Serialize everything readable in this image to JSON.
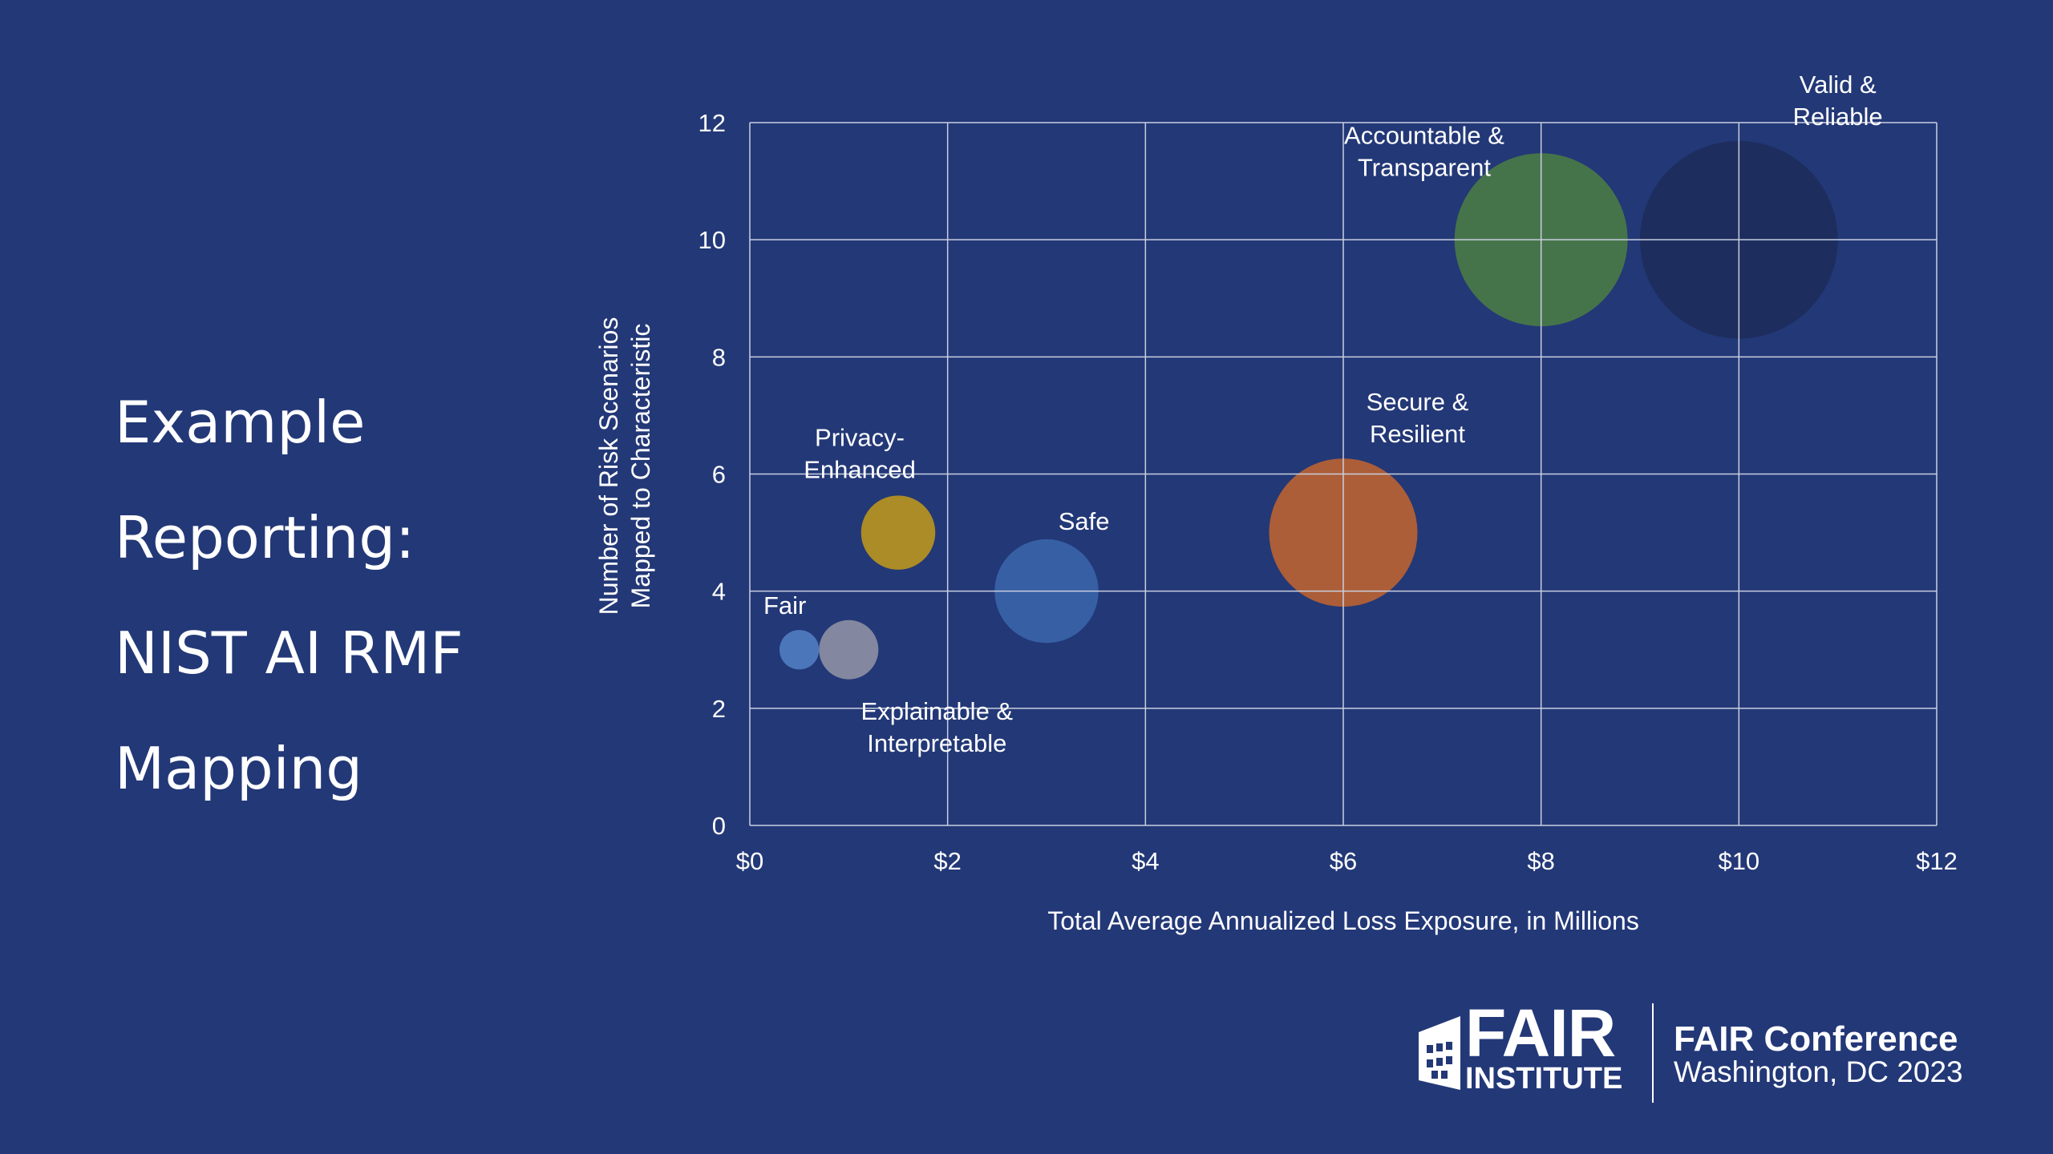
{
  "slide": {
    "title_lines": [
      "Example",
      "Reporting:",
      "NIST AI RMF",
      "Mapping"
    ],
    "background_color": "#233877"
  },
  "chart_data": {
    "type": "bubble",
    "title": "",
    "xlabel": "Total Average Annualized Loss Exposure, in Millions",
    "ylabel_lines": [
      "Number of Risk Scenarios",
      "Mapped to Characteristic"
    ],
    "xlim": [
      0,
      12
    ],
    "ylim": [
      0,
      12
    ],
    "x_ticks": [
      0,
      2,
      4,
      6,
      8,
      10,
      12
    ],
    "x_tick_labels": [
      "$0",
      "$2",
      "$4",
      "$6",
      "$8",
      "$10",
      "$12"
    ],
    "y_ticks": [
      0,
      2,
      4,
      6,
      8,
      10,
      12
    ],
    "y_tick_labels": [
      "0",
      "2",
      "4",
      "6",
      "8",
      "10",
      "12"
    ],
    "grid": true,
    "legend": "none",
    "points": [
      {
        "label_lines": [
          "Fair"
        ],
        "x": 0.5,
        "y": 3,
        "size": 0.4,
        "color": "#4f7cc0",
        "label_side": "above"
      },
      {
        "label_lines": [
          "Explainable &",
          "Interpretable"
        ],
        "x": 1.0,
        "y": 3,
        "size": 0.6,
        "color": "#8c8ea3",
        "label_side": "below"
      },
      {
        "label_lines": [
          "Privacy-",
          "Enhanced"
        ],
        "x": 1.5,
        "y": 5,
        "size": 0.75,
        "color": "#b8941f",
        "label_side": "above"
      },
      {
        "label_lines": [
          "Safe"
        ],
        "x": 3,
        "y": 4,
        "size": 1.05,
        "color": "#3a63a8",
        "label_side": "above-right"
      },
      {
        "label_lines": [
          "Secure &",
          "Resilient"
        ],
        "x": 6,
        "y": 5,
        "size": 1.5,
        "color": "#b86233",
        "label_side": "above-right"
      },
      {
        "label_lines": [
          "Accountable &",
          "Transparent"
        ],
        "x": 8,
        "y": 10,
        "size": 1.75,
        "color": "#4a7a46",
        "label_side": "above-left"
      },
      {
        "label_lines": [
          "Valid &",
          "Reliable"
        ],
        "x": 10,
        "y": 10,
        "size": 2.0,
        "color": "#1d2d5c",
        "label_side": "above-right"
      }
    ]
  },
  "logo": {
    "word": "FAIR",
    "subword": "INSTITUTE"
  },
  "conference": {
    "name": "FAIR Conference",
    "place": "Washington, DC 2023"
  }
}
